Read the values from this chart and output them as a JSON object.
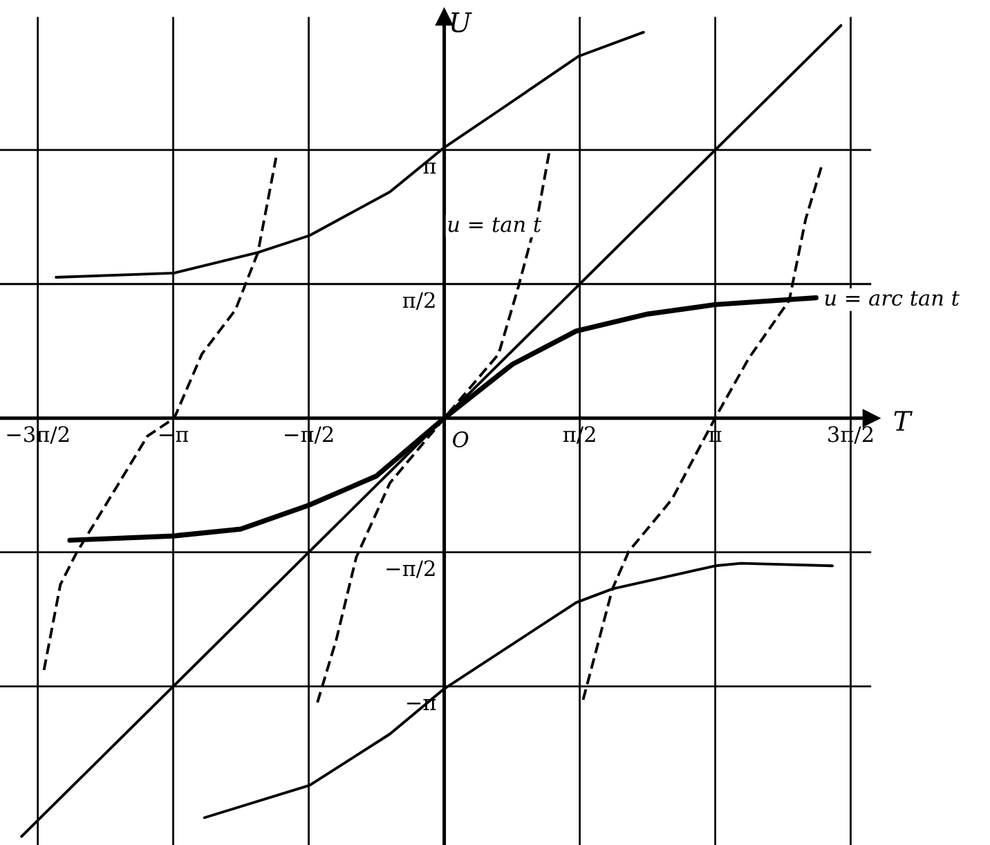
{
  "chart_data": {
    "type": "line",
    "xlabel": "T",
    "ylabel": "U",
    "xlim": [
      -5.15,
      4.95
    ],
    "ylim": [
      -5.0,
      4.7
    ],
    "xticks": [
      {
        "value": -4.712,
        "label": "−3π/2"
      },
      {
        "value": -3.142,
        "label": "−π"
      },
      {
        "value": -1.571,
        "label": "−π/2"
      },
      {
        "value": 1.571,
        "label": "π/2"
      },
      {
        "value": 3.142,
        "label": "π"
      },
      {
        "value": 4.712,
        "label": "3π/2"
      }
    ],
    "yticks": [
      {
        "value": -3.142,
        "label": "−π"
      },
      {
        "value": -1.571,
        "label": "−π/2"
      },
      {
        "value": 1.571,
        "label": "π/2"
      },
      {
        "value": 3.142,
        "label": "π"
      }
    ],
    "grid": true,
    "marker": "none",
    "series": [
      {
        "color": "#000000",
        "line_style": "solid",
        "x": [
          -4.9,
          4.6
        ],
        "values": [
          -4.9,
          4.6
        ]
      },
      {
        "color": "#000000",
        "line_style": "solid",
        "x": [
          -4.34,
          -3.14,
          -2.36,
          -1.57,
          -0.79,
          0,
          0.79,
          1.53,
          2.36,
          3.14,
          4.31
        ],
        "values": [
          -1.43,
          -1.38,
          -1.3,
          -1.02,
          -0.68,
          0,
          0.63,
          1.02,
          1.22,
          1.33,
          1.41
        ]
      },
      {
        "color": "#000000",
        "line_style": "solid",
        "x": [
          -4.5,
          -3.13,
          -2.16,
          -1.56,
          -0.63,
          0,
          0.63,
          1.56,
          2.31
        ],
        "values": [
          1.65,
          1.7,
          1.94,
          2.14,
          2.65,
          3.17,
          3.6,
          4.24,
          4.52
        ]
      },
      {
        "color": "#000000",
        "line_style": "solid",
        "x": [
          -2.78,
          -1.56,
          -0.63,
          0,
          1.53,
          1.95,
          3.14,
          3.44,
          4.5
        ],
        "values": [
          -4.68,
          -4.3,
          -3.7,
          -3.17,
          -2.16,
          -2.0,
          -1.73,
          -1.7,
          -1.73
        ]
      },
      {
        "color": "#000000",
        "line_style": "dashed",
        "x": [
          -1.47,
          -1.25,
          -1.02,
          -0.63,
          0,
          0.63,
          0.86,
          1.09,
          1.22
        ],
        "values": [
          -3.33,
          -2.59,
          -1.63,
          -0.76,
          0,
          0.75,
          1.54,
          2.41,
          3.13
        ]
      },
      {
        "color": "#000000",
        "line_style": "dashed",
        "x": [
          -4.64,
          -4.45,
          -4.27,
          -3.44,
          -3.13,
          -2.81,
          -2.42,
          -2.16,
          -1.95
        ],
        "values": [
          -2.95,
          -1.95,
          -1.59,
          -0.21,
          0,
          0.75,
          1.27,
          1.94,
          3.05
        ]
      },
      {
        "color": "#000000",
        "line_style": "dashed",
        "x": [
          1.61,
          1.95,
          2.14,
          2.64,
          3.14,
          3.53,
          4.0,
          4.19,
          4.38
        ],
        "values": [
          -3.3,
          -2.0,
          -1.56,
          -0.95,
          0,
          0.7,
          1.38,
          2.33,
          2.97
        ]
      }
    ],
    "annotations": [
      {
        "text": "u = tan t",
        "x": 1.06,
        "y": 2.25
      },
      {
        "text": "u = arc tan t",
        "x": 4.31,
        "y": 1.41
      },
      {
        "text": "O",
        "x": 0,
        "y": 0
      }
    ]
  }
}
